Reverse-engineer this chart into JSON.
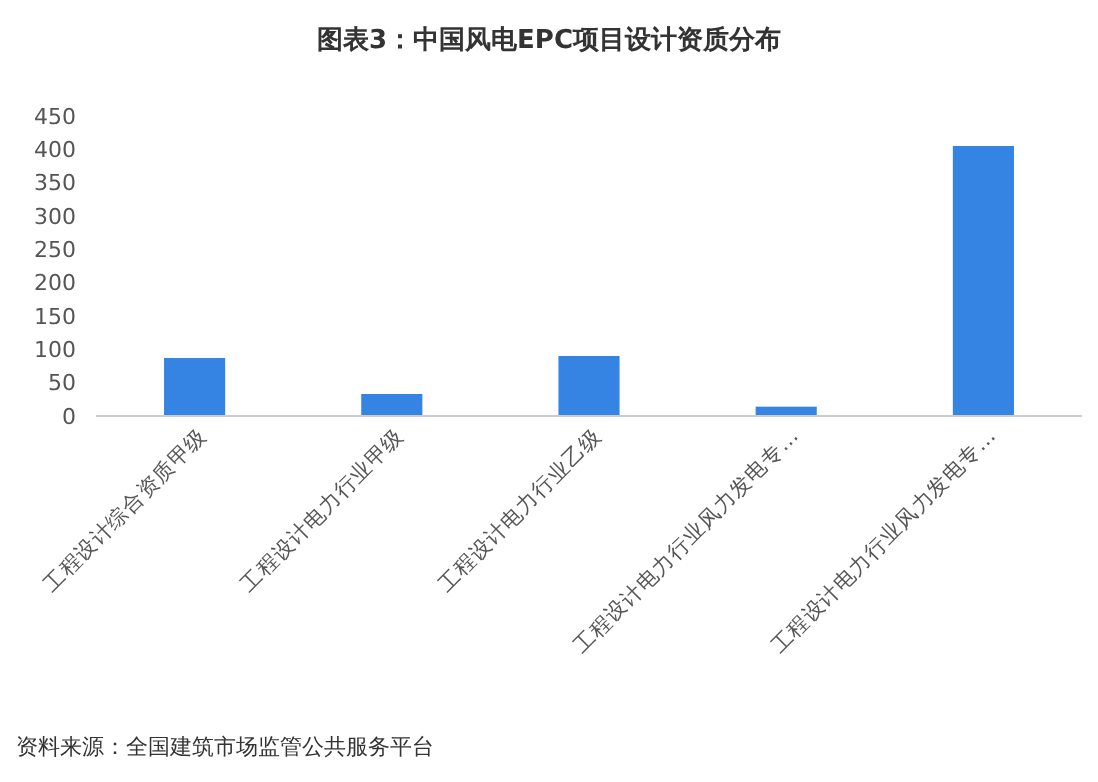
{
  "chart_data": {
    "type": "bar",
    "title": "图表3：中国风电EPC项目设计资质分布",
    "categories": [
      "工程设计综合资质甲级",
      "工程设计电力行业甲级",
      "工程设计电力行业乙级",
      "工程设计电力行业风力发电专…",
      "工程设计电力行业风力发电专…"
    ],
    "values": [
      87,
      33,
      90,
      14,
      405
    ],
    "color": "#3584e4",
    "ylim": [
      0,
      450
    ],
    "yticks": [
      0,
      50,
      100,
      150,
      200,
      250,
      300,
      350,
      400,
      450
    ],
    "grid": false,
    "annotations": [
      "资料来源：全国建筑市场监管公共服务平台"
    ]
  }
}
